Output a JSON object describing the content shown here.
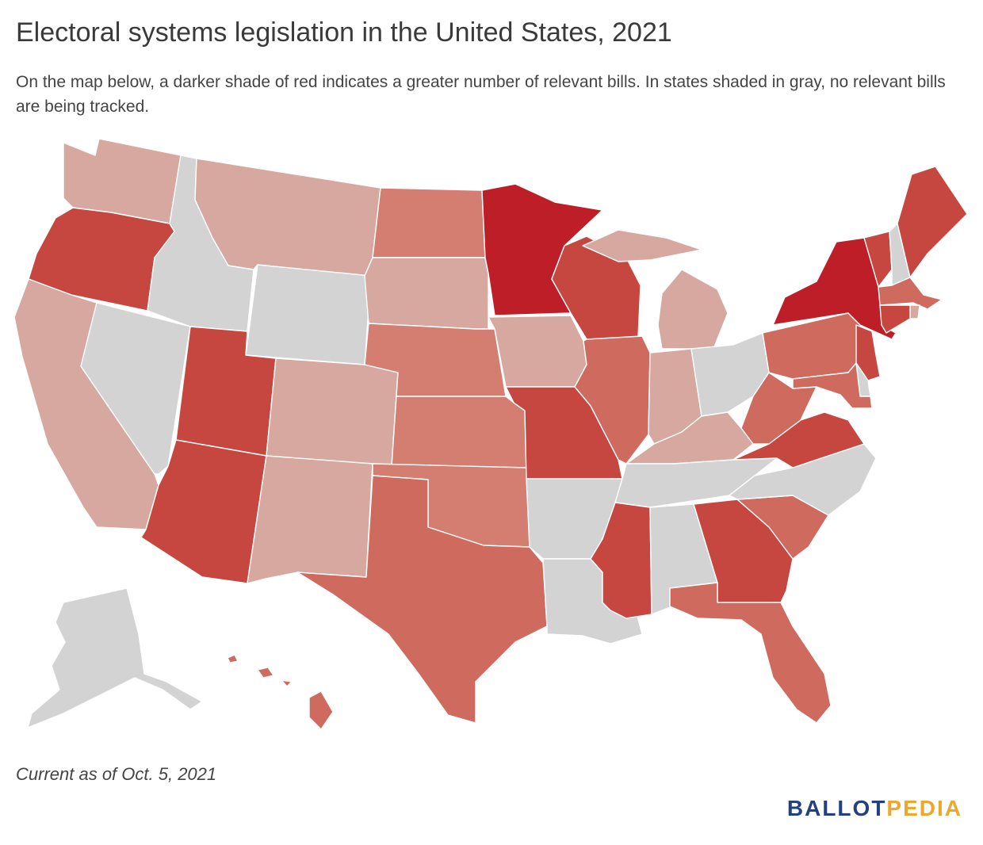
{
  "header": {
    "title": "Electoral systems legislation in the United States, 2021",
    "subtitle": "On the map below, a darker shade of red indicates a greater number of relevant bills. In states shaded in gray, no relevant bills are being tracked."
  },
  "footer": {
    "note": "Current as of Oct. 5, 2021",
    "logo_part1": "BALLOT",
    "logo_part2": "PEDIA"
  },
  "colors": {
    "level_0": "#d3d3d3",
    "level_1": "#d6a89f",
    "level_2": "#d47e72",
    "level_3": "#cf6a5f",
    "level_4": "#c64640",
    "level_5": "#be1e27",
    "logo_blue": "#24407f",
    "logo_gold": "#eda72b"
  },
  "states": [
    {
      "id": "WA",
      "level": 1
    },
    {
      "id": "OR",
      "level": 4
    },
    {
      "id": "CA",
      "level": 1
    },
    {
      "id": "NV",
      "level": 0
    },
    {
      "id": "ID",
      "level": 0
    },
    {
      "id": "MT",
      "level": 1
    },
    {
      "id": "WY",
      "level": 0
    },
    {
      "id": "UT",
      "level": 4
    },
    {
      "id": "AZ",
      "level": 4
    },
    {
      "id": "CO",
      "level": 1
    },
    {
      "id": "NM",
      "level": 1
    },
    {
      "id": "ND",
      "level": 2
    },
    {
      "id": "SD",
      "level": 1
    },
    {
      "id": "NE",
      "level": 2
    },
    {
      "id": "KS",
      "level": 2
    },
    {
      "id": "OK",
      "level": 2
    },
    {
      "id": "TX",
      "level": 3
    },
    {
      "id": "MN",
      "level": 5
    },
    {
      "id": "IA",
      "level": 1
    },
    {
      "id": "MO",
      "level": 4
    },
    {
      "id": "AR",
      "level": 0
    },
    {
      "id": "LA",
      "level": 0
    },
    {
      "id": "WI",
      "level": 4
    },
    {
      "id": "IL",
      "level": 3
    },
    {
      "id": "MI",
      "level": 1
    },
    {
      "id": "IN",
      "level": 1
    },
    {
      "id": "OH",
      "level": 0
    },
    {
      "id": "KY",
      "level": 1
    },
    {
      "id": "TN",
      "level": 0
    },
    {
      "id": "MS",
      "level": 4
    },
    {
      "id": "AL",
      "level": 0
    },
    {
      "id": "GA",
      "level": 4
    },
    {
      "id": "FL",
      "level": 3
    },
    {
      "id": "SC",
      "level": 3
    },
    {
      "id": "NC",
      "level": 0
    },
    {
      "id": "VA",
      "level": 4
    },
    {
      "id": "WV",
      "level": 3
    },
    {
      "id": "PA",
      "level": 3
    },
    {
      "id": "NY",
      "level": 5
    },
    {
      "id": "VT",
      "level": 4
    },
    {
      "id": "NH",
      "level": 0
    },
    {
      "id": "ME",
      "level": 4
    },
    {
      "id": "MA",
      "level": 3
    },
    {
      "id": "RI",
      "level": 1
    },
    {
      "id": "CT",
      "level": 4
    },
    {
      "id": "NJ",
      "level": 4
    },
    {
      "id": "DE",
      "level": 0
    },
    {
      "id": "MD",
      "level": 3
    },
    {
      "id": "AK",
      "level": 0
    },
    {
      "id": "HI",
      "level": 3
    }
  ]
}
